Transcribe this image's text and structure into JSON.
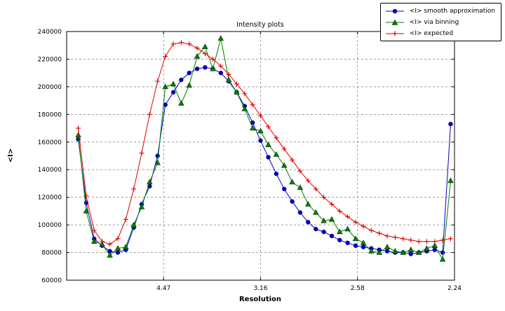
{
  "figure": {
    "title": "Intensity plots",
    "xlabel": "Resolution",
    "ylabel": "<I>"
  },
  "legend": {
    "items": [
      {
        "label": "<I> smooth approximation",
        "marker": "circle",
        "color": "#0000cd"
      },
      {
        "label": "<I> via binning",
        "marker": "triangle",
        "color": "#007f00"
      },
      {
        "label": "<I> expected",
        "marker": "plus",
        "color": "#e00000"
      }
    ]
  },
  "chart_data": {
    "type": "line",
    "title": "Intensity plots",
    "xlabel": "Resolution",
    "ylabel": "<I>",
    "x_units": "1/d^2 (resolution ticks shown in Angstrom)",
    "xlim": [
      0,
      0.2
    ],
    "ylim": [
      60000,
      240000
    ],
    "grid": true,
    "legend_position": "upper right, outside axes",
    "xticks": {
      "positions": [
        0.05,
        0.1,
        0.15,
        0.2
      ],
      "labels": [
        "4.47",
        "3.16",
        "2.58",
        "2.24"
      ]
    },
    "yticks": [
      60000,
      80000,
      100000,
      120000,
      140000,
      160000,
      180000,
      200000,
      220000,
      240000
    ],
    "x": [
      0.006,
      0.0101,
      0.0142,
      0.0183,
      0.0223,
      0.0264,
      0.0305,
      0.0346,
      0.0387,
      0.0428,
      0.0469,
      0.0509,
      0.055,
      0.0591,
      0.0632,
      0.0673,
      0.0714,
      0.0754,
      0.0795,
      0.0836,
      0.0877,
      0.0918,
      0.0959,
      0.1,
      0.104,
      0.1081,
      0.1122,
      0.1163,
      0.1204,
      0.1245,
      0.1285,
      0.1326,
      0.1367,
      0.1408,
      0.1449,
      0.149,
      0.153,
      0.1571,
      0.1612,
      0.1653,
      0.1694,
      0.1735,
      0.1775,
      0.1816,
      0.1857,
      0.1898,
      0.1939,
      0.198
    ],
    "series": [
      {
        "name": "<I> smooth approximation",
        "color": "#0000cd",
        "marker": "circle",
        "values": [
          162000,
          116000,
          90000,
          85000,
          81000,
          80000,
          82000,
          98000,
          115000,
          128000,
          150000,
          187000,
          196000,
          205000,
          210000,
          213000,
          214000,
          213000,
          210000,
          204000,
          196000,
          186000,
          174000,
          161000,
          149000,
          137000,
          126000,
          117000,
          109000,
          102000,
          97000,
          95000,
          92000,
          89000,
          87000,
          85000,
          84000,
          83000,
          82000,
          81000,
          80000,
          80000,
          79000,
          80000,
          81000,
          82000,
          80000,
          173000
        ]
      },
      {
        "name": "<I> via binning",
        "color": "#007f00",
        "marker": "triangle",
        "values": [
          165000,
          110000,
          88000,
          86000,
          78000,
          83000,
          84000,
          100000,
          113000,
          131000,
          145000,
          200000,
          202000,
          188000,
          201000,
          222000,
          229000,
          213000,
          235000,
          205000,
          196000,
          184000,
          170000,
          168000,
          158000,
          151000,
          143000,
          131000,
          127000,
          115000,
          109000,
          103000,
          104000,
          95000,
          97000,
          90000,
          87000,
          81000,
          80000,
          84000,
          81000,
          80000,
          82000,
          80000,
          83000,
          85000,
          75000,
          132000
        ]
      },
      {
        "name": "<I> expected",
        "color": "#e00000",
        "marker": "plus",
        "values": [
          170000,
          121000,
          96000,
          88000,
          86000,
          90000,
          104000,
          126000,
          152000,
          180000,
          204000,
          222000,
          231000,
          232000,
          231000,
          228000,
          224000,
          220000,
          215000,
          209000,
          202000,
          195000,
          187000,
          179000,
          171000,
          163000,
          155000,
          147000,
          139000,
          132000,
          126000,
          120000,
          115000,
          110000,
          106000,
          102000,
          99000,
          96000,
          94000,
          92000,
          91000,
          90000,
          89000,
          88000,
          88000,
          88000,
          89000,
          90000
        ]
      }
    ]
  }
}
